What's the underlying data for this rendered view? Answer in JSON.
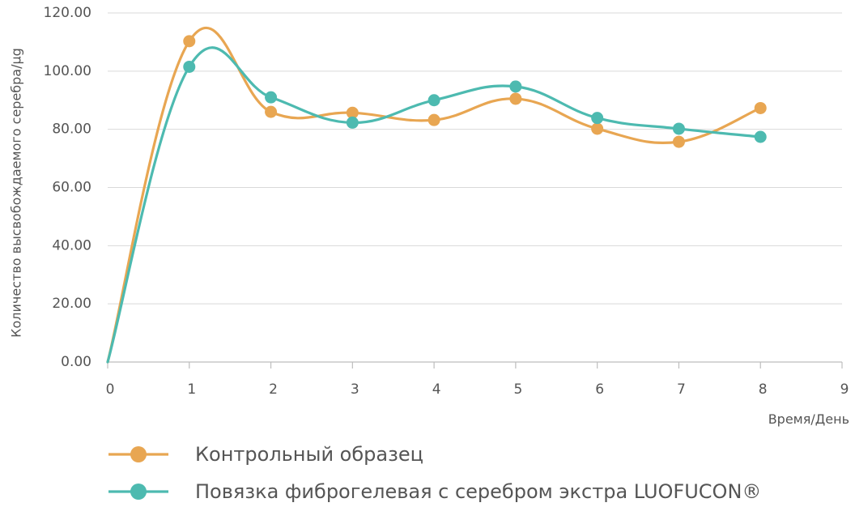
{
  "chart_data": {
    "type": "line",
    "xlabel": "Время/День",
    "ylabel": "Количество высвобождаемого серебра/µg",
    "xlim": [
      0,
      9
    ],
    "ylim": [
      0,
      120
    ],
    "x_ticks": [
      "0",
      "1",
      "2",
      "3",
      "4",
      "5",
      "6",
      "7",
      "8",
      "9"
    ],
    "y_ticks": [
      "0.00",
      "20.00",
      "40.00",
      "60.00",
      "80.00",
      "100.00",
      "120.00"
    ],
    "smooth": true,
    "grid": "horizontal",
    "legend_position": "bottom",
    "series": [
      {
        "name": "Контрольный образец",
        "color": "#e8a652",
        "points": [
          {
            "x": 0,
            "y": 0,
            "marker": false
          },
          {
            "x": 1,
            "y": 110.3,
            "marker": true
          },
          {
            "x": 2,
            "y": 86.0,
            "marker": true
          },
          {
            "x": 3,
            "y": 85.7,
            "marker": true
          },
          {
            "x": 4,
            "y": 83.2,
            "marker": true
          },
          {
            "x": 5,
            "y": 90.5,
            "marker": true
          },
          {
            "x": 6,
            "y": 80.2,
            "marker": true
          },
          {
            "x": 7,
            "y": 75.7,
            "marker": true
          },
          {
            "x": 8,
            "y": 87.3,
            "marker": true
          }
        ]
      },
      {
        "name": "Повязка фиброгелевая с серебром экстра LUOFUCON®",
        "color": "#4dbab0",
        "points": [
          {
            "x": 0,
            "y": 0,
            "marker": false
          },
          {
            "x": 1,
            "y": 101.5,
            "marker": true
          },
          {
            "x": 2,
            "y": 91.0,
            "marker": true
          },
          {
            "x": 3,
            "y": 82.3,
            "marker": true
          },
          {
            "x": 4,
            "y": 90.0,
            "marker": true
          },
          {
            "x": 5,
            "y": 94.7,
            "marker": true
          },
          {
            "x": 6,
            "y": 83.9,
            "marker": true
          },
          {
            "x": 7,
            "y": 80.2,
            "marker": true
          },
          {
            "x": 8,
            "y": 77.4,
            "marker": true
          }
        ]
      }
    ]
  }
}
